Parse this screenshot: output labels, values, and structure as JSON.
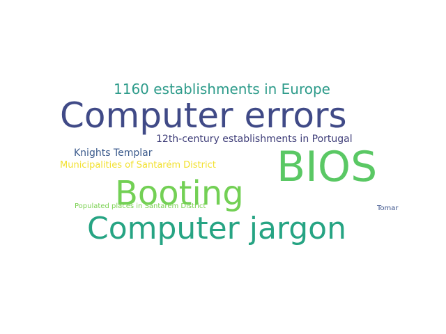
{
  "word_cloud": {
    "words": [
      {
        "id": "computer-errors",
        "text": "Computer errors",
        "color": "#404a87"
      },
      {
        "id": "bios",
        "text": "BIOS",
        "color": "#5ac864"
      },
      {
        "id": "booting",
        "text": "Booting",
        "color": "#73d055"
      },
      {
        "id": "computer-jargon",
        "text": "Computer jargon",
        "color": "#26a483"
      },
      {
        "id": "1160-establishments",
        "text": "1160 establishments in Europe",
        "color": "#2d9b8a"
      },
      {
        "id": "12th-century",
        "text": "12th-century establishments in Portugal",
        "color": "#3e3d78"
      },
      {
        "id": "knights-templar",
        "text": "Knights Templar",
        "color": "#3b5a8c"
      },
      {
        "id": "municipalities",
        "text": "Municipalities of Santarém District",
        "color": "#f2e130"
      },
      {
        "id": "populated-places",
        "text": "Populated places in Santarém District",
        "color": "#7ad151"
      },
      {
        "id": "tomar",
        "text": "Tomar",
        "color": "#3b528b"
      }
    ]
  }
}
